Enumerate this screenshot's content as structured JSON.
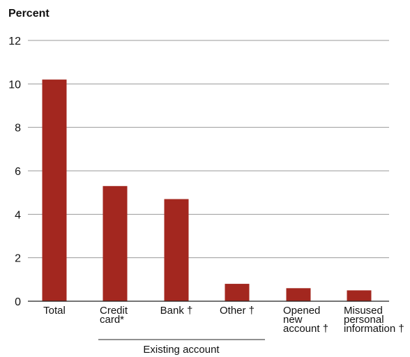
{
  "colors": {
    "bar": "#A3271F",
    "grid": "#9a9a9a",
    "text": "#111111"
  },
  "chart_data": {
    "type": "bar",
    "ylabel": "Percent",
    "ylim": [
      0,
      12
    ],
    "yticks": [
      0,
      2,
      4,
      6,
      8,
      10,
      12
    ],
    "grid": true,
    "categories": [
      [
        "Total"
      ],
      [
        "Credit",
        "card*"
      ],
      [
        "Bank †"
      ],
      [
        "Other †"
      ],
      [
        "Opened",
        "new",
        "account †"
      ],
      [
        "Misused",
        "personal",
        "information †"
      ]
    ],
    "values": [
      10.2,
      5.3,
      4.7,
      0.8,
      0.6,
      0.5
    ],
    "group_label": "Existing account"
  }
}
